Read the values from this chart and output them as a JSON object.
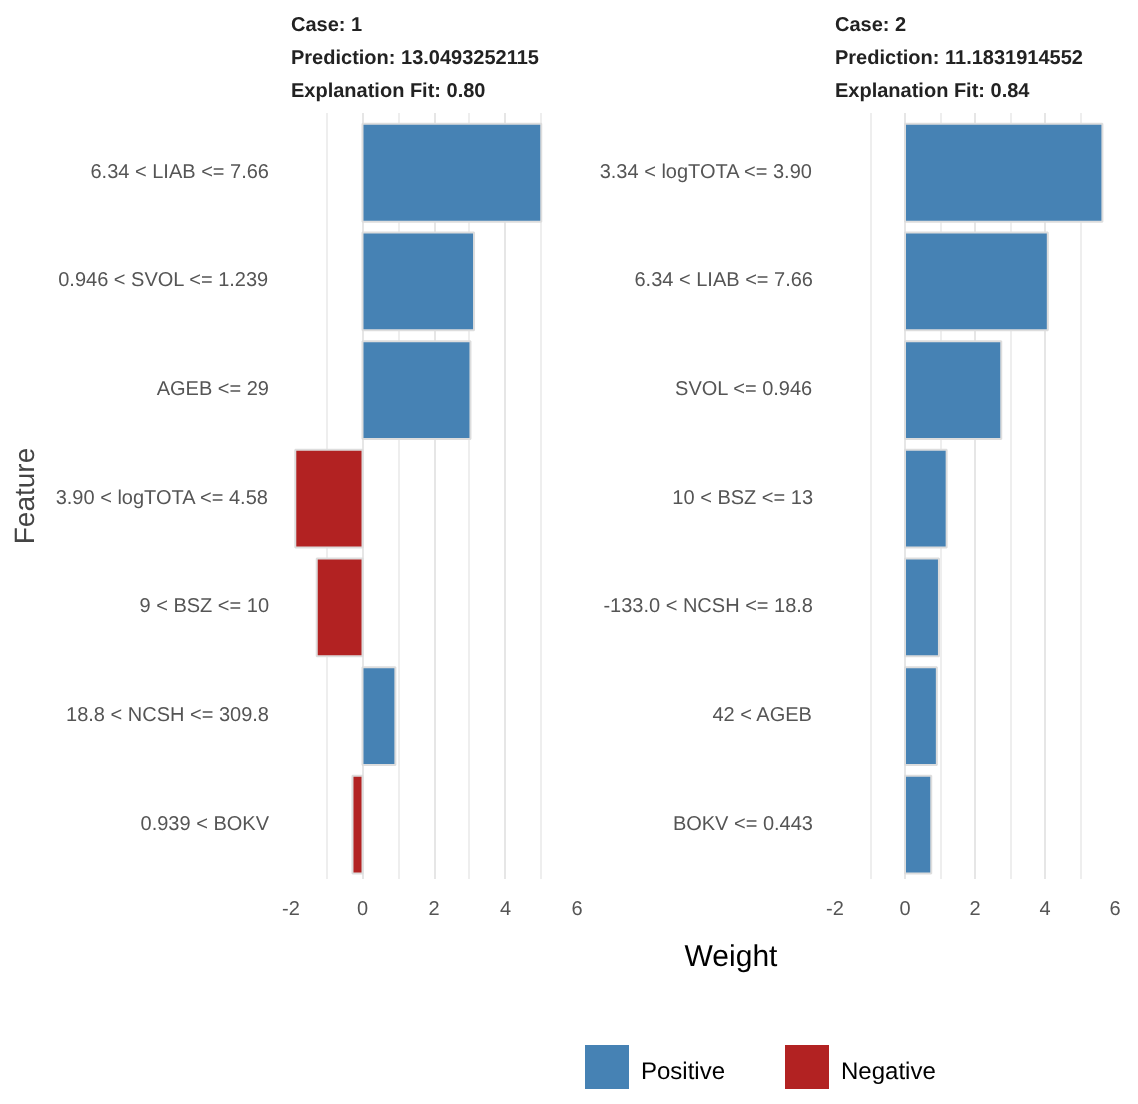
{
  "chart_data": [
    {
      "type": "bar",
      "orientation": "horizontal",
      "stacked": true,
      "title": "Case: 1\nPrediction: 13.0493252115\nExplanation Fit: 0.80",
      "xlabel": "Weight",
      "ylabel": "Feature",
      "categories": [
        "6.34 < LIAB <= 7.66",
        "0.946 < SVOL <= 1.239",
        "AGEB <= 29",
        "3.90 < logTOTA <= 4.58",
        "9 < BSZ <= 10",
        "18.8 < NCSH <= 309.8",
        "0.939 < BOKV"
      ],
      "series": [
        {
          "name": "Positive",
          "color": "#4682b4",
          "values": [
            5.0,
            3.12,
            3.02,
            null,
            null,
            0.92,
            null
          ]
        },
        {
          "name": "Negative",
          "color": "#b22222",
          "values": [
            null,
            null,
            null,
            -1.88,
            -1.28,
            null,
            -0.28
          ]
        }
      ],
      "xlim": [
        -2,
        6
      ],
      "xticks": [
        -2,
        0,
        2,
        4,
        6
      ],
      "grid": "x",
      "legend": "bottom"
    },
    {
      "type": "bar",
      "orientation": "horizontal",
      "stacked": true,
      "title": "Case: 2\nPrediction: 11.1831914552\nExplanation Fit: 0.84",
      "categories": [
        "3.34 < logTOTA <= 3.90",
        "6.34 < LIAB <= 7.66",
        "SVOL <= 0.946",
        "10 < BSZ <= 13",
        "-133.0 < NCSH <= 18.8",
        "42 < AGEB",
        "BOKV <= 0.443"
      ],
      "series": [
        {
          "name": "Positive",
          "color": "#4682b4",
          "values": [
            5.64,
            4.08,
            2.75,
            1.19,
            0.97,
            0.91,
            0.75
          ]
        }
      ],
      "xlim": [
        -2,
        6
      ],
      "xticks": [
        -2,
        0,
        2,
        4,
        6
      ],
      "grid": "x"
    }
  ]
}
